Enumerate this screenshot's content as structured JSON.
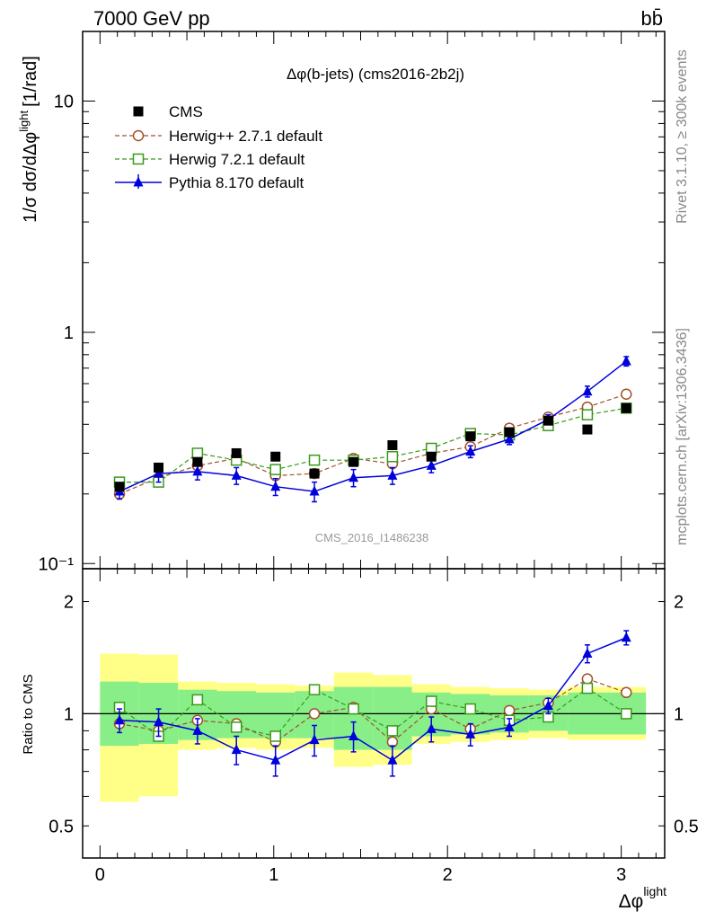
{
  "header": {
    "left_title": "7000 GeV pp",
    "right_title": "bb̄"
  },
  "side_labels": {
    "right_top": "Rivet 3.1.10, ≥ 300k events",
    "right_bottom": "mcplots.cern.ch [arXiv:1306.3436]"
  },
  "chart_data": [
    {
      "type": "scatter",
      "panel": "main",
      "title": "Δφ(b-jets) (cms2016-2b2j)",
      "watermark": "CMS_2016_I1486238",
      "ylabel": "1/σ dσ/dΔφ^light [1/rad]",
      "ylabel_main": "1/σ dσ/dΔφ",
      "ylabel_sup": "light",
      "ylabel_unit": "[1/rad]",
      "yscale": "log",
      "xlim": [
        -0.1,
        3.25
      ],
      "ylim": [
        0.095,
        20
      ],
      "ytick_labels": [
        "10",
        "1",
        "10⁻¹"
      ],
      "legend_position": "top-left",
      "x": [
        0.112,
        0.337,
        0.561,
        0.785,
        1.01,
        1.234,
        1.459,
        1.683,
        1.907,
        2.132,
        2.356,
        2.58,
        2.805,
        3.029
      ],
      "series": [
        {
          "name": "CMS",
          "marker": "filled-square",
          "color": "#000000",
          "line": "none",
          "values": [
            0.215,
            0.26,
            0.275,
            0.3,
            0.29,
            0.245,
            0.275,
            0.325,
            0.29,
            0.355,
            0.37,
            0.415,
            0.38,
            0.47
          ]
        },
        {
          "name": "Herwig++ 2.7.1 default",
          "marker": "open-circle",
          "color": "#a0522d",
          "line": "dashed",
          "values": [
            0.2,
            0.235,
            0.265,
            0.285,
            0.24,
            0.245,
            0.285,
            0.27,
            0.3,
            0.32,
            0.385,
            0.43,
            0.475,
            0.54
          ]
        },
        {
          "name": "Herwig 7.2.1 default",
          "marker": "open-square",
          "color": "#3a9a1a",
          "line": "dashed",
          "values": [
            0.225,
            0.225,
            0.3,
            0.28,
            0.255,
            0.28,
            0.28,
            0.29,
            0.315,
            0.365,
            0.36,
            0.395,
            0.44,
            0.47
          ]
        },
        {
          "name": "Pythia 8.170 default",
          "marker": "filled-triangle",
          "color": "#0000dd",
          "line": "solid",
          "values": [
            0.205,
            0.245,
            0.25,
            0.24,
            0.215,
            0.205,
            0.235,
            0.24,
            0.265,
            0.305,
            0.345,
            0.42,
            0.555,
            0.75
          ],
          "errors": [
            0.015,
            0.02,
            0.02,
            0.02,
            0.018,
            0.02,
            0.02,
            0.02,
            0.018,
            0.018,
            0.018,
            0.02,
            0.03,
            0.035
          ]
        }
      ]
    },
    {
      "type": "scatter",
      "panel": "ratio",
      "ylabel": "Ratio to CMS",
      "xlabel": "Δφ^light",
      "xlabel_main": "Δφ",
      "xlabel_sup": "light",
      "yscale": "log",
      "xlim": [
        -0.1,
        3.25
      ],
      "ylim": [
        0.41,
        2.45
      ],
      "ytick_labels": [
        "2",
        "1",
        "0.5"
      ],
      "xtick_labels": [
        "0",
        "1",
        "2",
        "3"
      ],
      "reference_line": 1,
      "bands": {
        "edges": [
          0,
          0.224,
          0.449,
          0.673,
          0.898,
          1.122,
          1.346,
          1.571,
          1.795,
          2.019,
          2.244,
          2.468,
          2.693,
          2.917,
          3.142
        ],
        "inner": [
          [
            0.82,
            1.22
          ],
          [
            0.83,
            1.21
          ],
          [
            0.85,
            1.16
          ],
          [
            0.86,
            1.15
          ],
          [
            0.86,
            1.14
          ],
          [
            0.86,
            1.15
          ],
          [
            0.8,
            1.18
          ],
          [
            0.8,
            1.18
          ],
          [
            0.87,
            1.14
          ],
          [
            0.88,
            1.13
          ],
          [
            0.89,
            1.12
          ],
          [
            0.9,
            1.12
          ],
          [
            0.88,
            1.14
          ],
          [
            0.88,
            1.14
          ]
        ],
        "outer": [
          [
            0.58,
            1.45
          ],
          [
            0.6,
            1.44
          ],
          [
            0.8,
            1.22
          ],
          [
            0.81,
            1.21
          ],
          [
            0.8,
            1.2
          ],
          [
            0.81,
            1.19
          ],
          [
            0.72,
            1.29
          ],
          [
            0.73,
            1.27
          ],
          [
            0.83,
            1.2
          ],
          [
            0.84,
            1.18
          ],
          [
            0.85,
            1.17
          ],
          [
            0.86,
            1.16
          ],
          [
            0.85,
            1.18
          ],
          [
            0.85,
            1.18
          ]
        ]
      },
      "series": [
        {
          "name": "Herwig++ 2.7.1 default",
          "marker": "open-circle",
          "color": "#a0522d",
          "line": "dashed",
          "values": [
            0.94,
            0.9,
            0.96,
            0.94,
            0.84,
            1.0,
            1.04,
            0.84,
            1.03,
            0.91,
            1.02,
            1.07,
            1.24,
            1.14
          ]
        },
        {
          "name": "Herwig 7.2.1 default",
          "marker": "open-square",
          "color": "#3a9a1a",
          "line": "dashed",
          "values": [
            1.04,
            0.87,
            1.09,
            0.92,
            0.87,
            1.16,
            1.03,
            0.9,
            1.08,
            1.03,
            0.96,
            0.98,
            1.17,
            1.0
          ]
        },
        {
          "name": "Pythia 8.170 default",
          "marker": "filled-triangle",
          "color": "#0000dd",
          "line": "solid",
          "values": [
            0.96,
            0.95,
            0.9,
            0.8,
            0.75,
            0.85,
            0.87,
            0.75,
            0.91,
            0.88,
            0.92,
            1.05,
            1.45,
            1.6
          ],
          "errors": [
            0.07,
            0.08,
            0.07,
            0.07,
            0.07,
            0.08,
            0.08,
            0.07,
            0.07,
            0.06,
            0.05,
            0.05,
            0.08,
            0.07
          ]
        }
      ]
    }
  ]
}
